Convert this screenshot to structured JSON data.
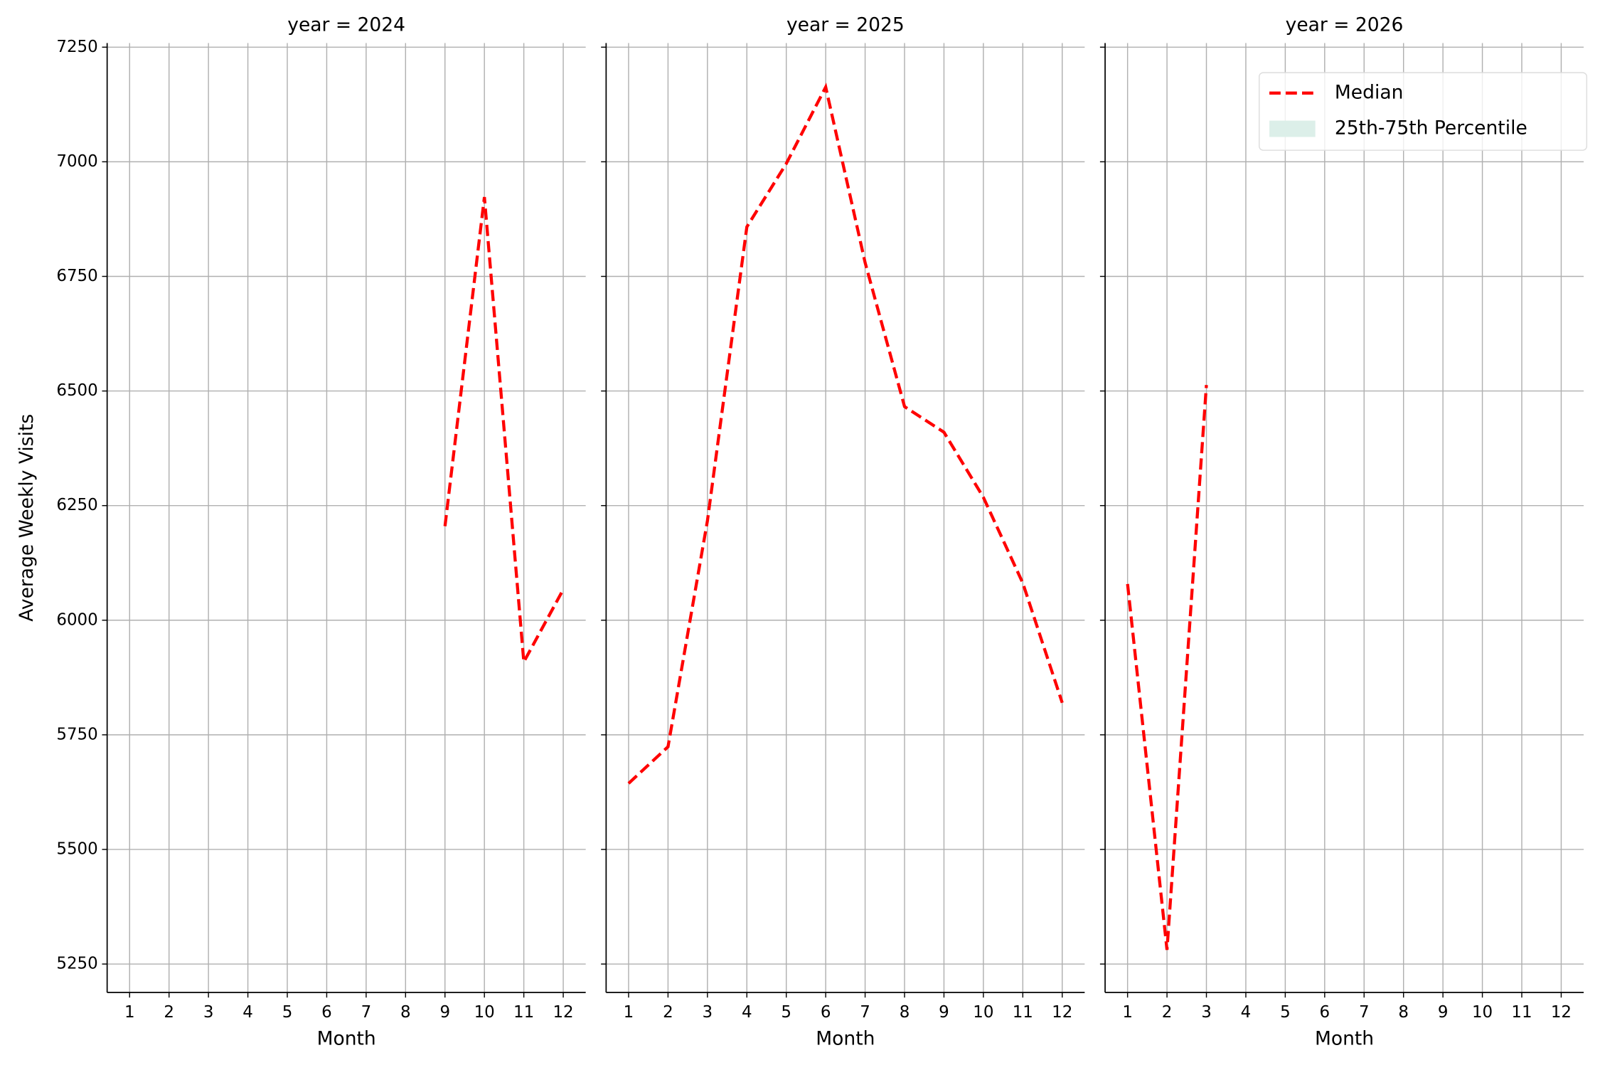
{
  "chart_data": [
    {
      "type": "line",
      "title": "year = 2024",
      "xlabel": "Month",
      "ylabel": "Average Weekly Visits",
      "x": [
        1,
        2,
        3,
        4,
        5,
        6,
        7,
        8,
        9,
        10,
        11,
        12
      ],
      "series": [
        {
          "name": "Median",
          "color": "#ff0000",
          "values": [
            null,
            null,
            null,
            null,
            null,
            null,
            null,
            null,
            6205,
            6923,
            5909,
            6067
          ]
        }
      ],
      "xlim": [
        0.43,
        12.57
      ],
      "xticks": [
        1,
        2,
        3,
        4,
        5,
        6,
        7,
        8,
        9,
        10,
        11,
        12
      ],
      "ylim": [
        5188,
        7259
      ],
      "yticks": [
        5250,
        5500,
        5750,
        6000,
        6250,
        6500,
        6750,
        7000,
        7250
      ],
      "grid": true
    },
    {
      "type": "line",
      "title": "year = 2025",
      "xlabel": "Month",
      "x": [
        1,
        2,
        3,
        4,
        5,
        6,
        7,
        8,
        9,
        10,
        11,
        12
      ],
      "series": [
        {
          "name": "Median",
          "color": "#ff0000",
          "values": [
            5644,
            5724,
            6217,
            6858,
            6996,
            7163,
            6780,
            6466,
            6410,
            6268,
            6081,
            5820
          ]
        }
      ],
      "xlim": [
        0.43,
        12.57
      ],
      "xticks": [
        1,
        2,
        3,
        4,
        5,
        6,
        7,
        8,
        9,
        10,
        11,
        12
      ],
      "ylim": [
        5188,
        7259
      ],
      "yticks": [
        5250,
        5500,
        5750,
        6000,
        6250,
        6500,
        6750,
        7000,
        7250
      ],
      "grid": true
    },
    {
      "type": "line",
      "title": "year = 2026",
      "xlabel": "Month",
      "x": [
        1,
        2,
        3,
        4,
        5,
        6,
        7,
        8,
        9,
        10,
        11,
        12
      ],
      "series": [
        {
          "name": "Median",
          "color": "#ff0000",
          "values": [
            6079,
            5281,
            6513,
            null,
            null,
            null,
            null,
            null,
            null,
            null,
            null,
            null
          ]
        }
      ],
      "xlim": [
        0.43,
        12.57
      ],
      "xticks": [
        1,
        2,
        3,
        4,
        5,
        6,
        7,
        8,
        9,
        10,
        11,
        12
      ],
      "ylim": [
        5188,
        7259
      ],
      "yticks": [
        5250,
        5500,
        5750,
        6000,
        6250,
        6500,
        6750,
        7000,
        7250
      ],
      "grid": true,
      "legend": {
        "loc": "upper right",
        "extra": [
          {
            "name": "25th-75th Percentile",
            "color": "#dcefe9"
          }
        ]
      }
    }
  ]
}
